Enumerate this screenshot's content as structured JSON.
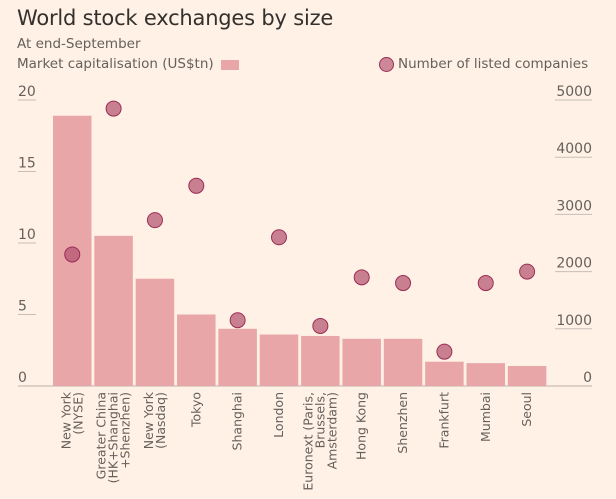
{
  "chart_data": {
    "type": "bar",
    "title": "World stock exchanges by size",
    "subtitle": "At end-September",
    "categories": [
      [
        "New York",
        "(NYSE)"
      ],
      [
        "Greater China",
        "(HK+Shanghai",
        "+Shenzhen)"
      ],
      [
        "New York",
        "(Nasdaq)"
      ],
      [
        "Tokyo"
      ],
      [
        "Shanghai"
      ],
      [
        "London"
      ],
      [
        "Euronext (Paris,",
        "Brussels,",
        "Amsterdam)"
      ],
      [
        "Hong Kong"
      ],
      [
        "Shenzhen"
      ],
      [
        "Frankfurt"
      ],
      [
        "Mumbai"
      ],
      [
        "Seoul"
      ]
    ],
    "series": [
      {
        "name": "Market capitalisation (US$tn)",
        "type": "bar",
        "axis": "left",
        "color": "#e8a6a8",
        "values": [
          18.9,
          10.5,
          7.5,
          5.0,
          4.0,
          3.6,
          3.5,
          3.3,
          3.3,
          1.7,
          1.6,
          1.4
        ]
      },
      {
        "name": "Number of listed companies",
        "type": "scatter",
        "axis": "right",
        "color": "#b0506e",
        "stroke": "#9b2d55",
        "values": [
          2300,
          4850,
          2900,
          3500,
          1150,
          2600,
          1050,
          1900,
          1800,
          600,
          1800,
          2000
        ]
      }
    ],
    "left_axis": {
      "ylim": [
        0,
        20
      ],
      "ticks": [
        "0",
        "5",
        "10",
        "15",
        "20"
      ],
      "tick_values": [
        0,
        5,
        10,
        15,
        20
      ]
    },
    "right_axis": {
      "ylim": [
        0,
        5000
      ],
      "ticks": [
        "0",
        "1000",
        "2000",
        "3000",
        "4000",
        "5000"
      ],
      "tick_values": [
        0,
        1000,
        2000,
        3000,
        4000,
        5000
      ]
    },
    "xlabel": "",
    "grid": false,
    "legend": "top"
  },
  "legend": {
    "bar_label": "Market capitalisation (US$tn)",
    "dot_label": "Number of listed companies"
  },
  "colors": {
    "background": "#fff1e5",
    "bar": "#e8a6a8",
    "dot": "#b0506e",
    "dot_stroke": "#9b2d55",
    "axis": "#c7bfb8"
  }
}
